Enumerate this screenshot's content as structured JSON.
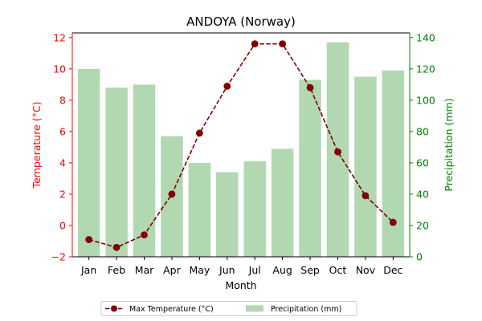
{
  "chart_data": {
    "type": "bar",
    "title": "ANDOYA (Norway)",
    "xlabel": "Month",
    "categories": [
      "Jan",
      "Feb",
      "Mar",
      "Apr",
      "May",
      "Jun",
      "Jul",
      "Aug",
      "Sep",
      "Oct",
      "Nov",
      "Dec"
    ],
    "series": [
      {
        "name": "Max Temperature (°C)",
        "type": "line",
        "axis": "left",
        "color": "#800000",
        "values": [
          -0.9,
          -1.4,
          -0.6,
          2.0,
          5.9,
          8.9,
          11.6,
          11.6,
          8.8,
          4.7,
          1.9,
          0.2
        ]
      },
      {
        "name": "Precipitation (mm)",
        "type": "bar",
        "axis": "right",
        "color": "#b2d8b2",
        "values": [
          120,
          108,
          110,
          77,
          60,
          54,
          61,
          69,
          113,
          137,
          115,
          119
        ]
      }
    ],
    "y_left": {
      "label": "Temperature (°C)",
      "color": "#ff0000",
      "ylim": [
        -2,
        12.3
      ],
      "ticks": [
        "−2",
        "0",
        "2",
        "4",
        "6",
        "8",
        "10",
        "12"
      ],
      "tick_values": [
        -2,
        0,
        2,
        4,
        6,
        8,
        10,
        12
      ]
    },
    "y_right": {
      "label": "Precipitation (mm)",
      "color": "#008000",
      "ylim": [
        0,
        143
      ],
      "ticks": [
        "0",
        "20",
        "40",
        "60",
        "80",
        "100",
        "120",
        "140"
      ],
      "tick_values": [
        0,
        20,
        40,
        60,
        80,
        100,
        120,
        140
      ]
    },
    "grid": false,
    "legend": {
      "position": "bottom-center",
      "entries": [
        "Max Temperature (°C)",
        "Precipitation (mm)"
      ]
    }
  }
}
